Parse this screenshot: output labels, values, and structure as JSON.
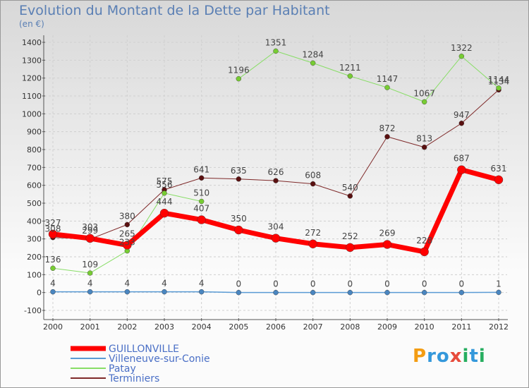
{
  "title": "Evolution du Montant de la Dette par Habitant",
  "unit": "(en €)",
  "logo": {
    "text": "Proxiti",
    "letters": [
      "P",
      "r",
      "o",
      "x",
      "i",
      "t",
      "i"
    ],
    "colors": [
      "#f39c12",
      "#3498db",
      "#3498db",
      "#e74c3c",
      "#27ae60",
      "#3498db",
      "#27ae60"
    ]
  },
  "chart_data": {
    "type": "line",
    "title": "Evolution du Montant de la Dette par Habitant",
    "ylabel": "(en €)",
    "ylim": [
      -100,
      1400
    ],
    "yticks": [
      "-100",
      "0",
      "100",
      "200",
      "300",
      "400",
      "500",
      "600",
      "700",
      "800",
      "900",
      "1000",
      "1100",
      "1200",
      "1300",
      "1400"
    ],
    "categories": [
      "2000",
      "2001",
      "2002",
      "2003",
      "2004",
      "2005",
      "2006",
      "2007",
      "2008",
      "2009",
      "2010",
      "2011",
      "2012"
    ],
    "series": [
      {
        "name": "Terminiers",
        "color": "#7f2a2a",
        "dot": "#5a1010",
        "width": 1,
        "values": [
          308,
          299,
          380,
          575,
          641,
          635,
          626,
          608,
          540,
          872,
          813,
          947,
          1134
        ],
        "labels": [
          "308",
          "299",
          "380",
          "575",
          "641",
          "635",
          "626",
          "608",
          "540",
          "872",
          "813",
          "947",
          "1134"
        ]
      },
      {
        "name": "Patay",
        "color": "#88dd66",
        "dot": "#77cc33",
        "width": 1,
        "values": [
          136,
          109,
          233,
          556,
          510,
          null,
          null,
          null,
          null,
          null,
          null,
          null,
          null
        ],
        "labels": [
          "136",
          "109",
          "233",
          "556",
          "510",
          "",
          "",
          "",
          "",
          "",
          "",
          "",
          ""
        ]
      },
      {
        "name": "Patay",
        "color": "#88dd66",
        "dot": "#77cc33",
        "width": 1,
        "values": [
          null,
          null,
          null,
          null,
          null,
          1196,
          1351,
          1284,
          1211,
          1147,
          1067,
          1322,
          1144
        ],
        "labels": [
          "",
          "",
          "",
          "",
          "",
          "1196",
          "1351",
          "1284",
          "1211",
          "1147",
          "1067",
          "1322",
          "1144"
        ]
      },
      {
        "name": "Villeneuve-sur-Conie",
        "color": "#5a9bd5",
        "dot": "#4a86c0",
        "width": 1.5,
        "values": [
          4,
          4,
          4,
          4,
          4,
          0,
          0,
          0,
          0,
          0,
          0,
          0,
          1
        ],
        "labels": [
          "4",
          "4",
          "4",
          "4",
          "4",
          "0",
          "0",
          "0",
          "0",
          "0",
          "0",
          "0",
          "1"
        ]
      },
      {
        "name": "GUILLONVILLE",
        "color": "#ff0000",
        "dot": "#ff0000",
        "width": 7,
        "values": [
          327,
          303,
          265,
          444,
          407,
          350,
          304,
          272,
          252,
          269,
          228,
          687,
          631
        ],
        "labels": [
          "327",
          "303",
          "265",
          "444",
          "407",
          "350",
          "304",
          "272",
          "252",
          "269",
          "228",
          "687",
          "631"
        ]
      }
    ],
    "legend": [
      {
        "name": "GUILLONVILLE",
        "color": "#ff0000",
        "width": 7
      },
      {
        "name": "Villeneuve-sur-Conie",
        "color": "#5a9bd5",
        "width": 2
      },
      {
        "name": "Patay",
        "color": "#88dd66",
        "width": 2
      },
      {
        "name": "Terminiers",
        "color": "#7f2a2a",
        "width": 2
      }
    ]
  }
}
